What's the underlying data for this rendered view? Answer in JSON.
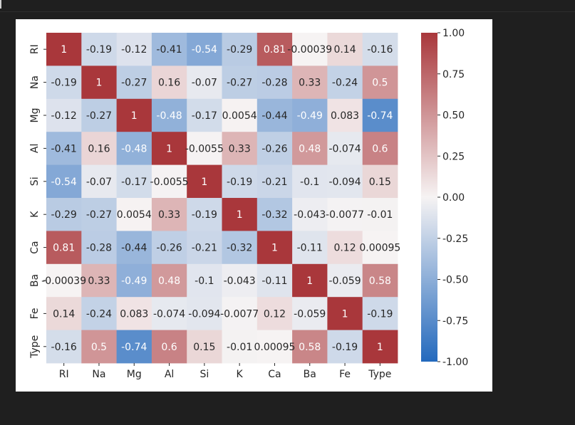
{
  "chart_data": {
    "type": "heatmap",
    "title": "",
    "xlabel": "",
    "ylabel": "",
    "labels": [
      "RI",
      "Na",
      "Mg",
      "Al",
      "Si",
      "K",
      "Ca",
      "Ba",
      "Fe",
      "Type"
    ],
    "annotations": [
      [
        "1",
        "-0.19",
        "-0.12",
        "-0.41",
        "-0.54",
        "-0.29",
        "0.81",
        "-0.00039",
        "0.14",
        "-0.16"
      ],
      [
        "-0.19",
        "1",
        "-0.27",
        "0.16",
        "-0.07",
        "-0.27",
        "-0.28",
        "0.33",
        "-0.24",
        "0.5"
      ],
      [
        "-0.12",
        "-0.27",
        "1",
        "-0.48",
        "-0.17",
        "0.0054",
        "-0.44",
        "-0.49",
        "0.083",
        "-0.74"
      ],
      [
        "-0.41",
        "0.16",
        "-0.48",
        "1",
        "-0.0055",
        "0.33",
        "-0.26",
        "0.48",
        "-0.074",
        "0.6"
      ],
      [
        "-0.54",
        "-0.07",
        "-0.17",
        "-0.0055",
        "1",
        "-0.19",
        "-0.21",
        "-0.1",
        "-0.094",
        "0.15"
      ],
      [
        "-0.29",
        "-0.27",
        "0.0054",
        "0.33",
        "-0.19",
        "1",
        "-0.32",
        "-0.043",
        "-0.0077",
        "-0.01"
      ],
      [
        "0.81",
        "-0.28",
        "-0.44",
        "-0.26",
        "-0.21",
        "-0.32",
        "1",
        "-0.11",
        "0.12",
        "0.00095"
      ],
      [
        "-0.00039",
        "0.33",
        "-0.49",
        "0.48",
        "-0.1",
        "-0.043",
        "-0.11",
        "1",
        "-0.059",
        "0.58"
      ],
      [
        "0.14",
        "-0.24",
        "0.083",
        "-0.074",
        "-0.094",
        "-0.0077",
        "0.12",
        "-0.059",
        "1",
        "-0.19"
      ],
      [
        "-0.16",
        "0.5",
        "-0.74",
        "0.6",
        "0.15",
        "-0.01",
        "0.00095",
        "0.58",
        "-0.19",
        "1"
      ]
    ],
    "colorbar": {
      "range": [
        -1.0,
        1.0
      ],
      "ticks": [
        "1.00",
        "0.75",
        "0.50",
        "0.25",
        "0.00",
        "-0.25",
        "-0.50",
        "-0.75",
        "-1.00"
      ],
      "colormap": "vlag"
    },
    "cmap_stops": {
      "neg": "#2369bd",
      "mid": "#f6f3f3",
      "pos": "#a9373b"
    },
    "text_colors": {
      "dark": "#262626",
      "light": "#ffffff"
    }
  }
}
